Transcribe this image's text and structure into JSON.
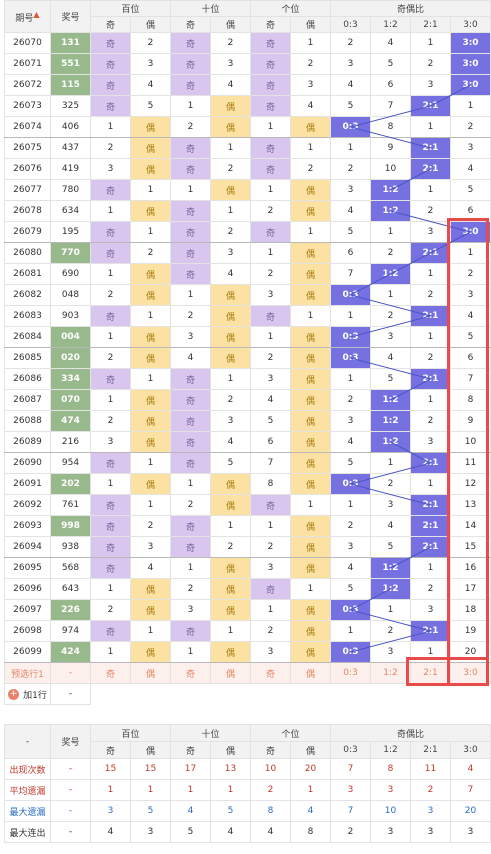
{
  "header": {
    "period": "期号",
    "prize": "奖号",
    "groups": [
      "百位",
      "十位",
      "个位",
      "奇偶比"
    ],
    "odd": "奇",
    "even": "偶",
    "ratios": [
      "0:3",
      "1:2",
      "2:1",
      "3:0"
    ]
  },
  "rows": [
    {
      "p": "26070",
      "n": "131",
      "hl": true,
      "b": [
        "奇",
        "2"
      ],
      "t": [
        "奇",
        "2"
      ],
      "g": [
        "奇",
        "1"
      ],
      "r": [
        "2",
        "4",
        "1",
        "3:0"
      ],
      "sel": 3
    },
    {
      "p": "26071",
      "n": "551",
      "hl": true,
      "b": [
        "奇",
        "3"
      ],
      "t": [
        "奇",
        "3"
      ],
      "g": [
        "奇",
        "2"
      ],
      "r": [
        "3",
        "5",
        "2",
        "3:0"
      ],
      "sel": 3
    },
    {
      "p": "26072",
      "n": "115",
      "hl": true,
      "b": [
        "奇",
        "4"
      ],
      "t": [
        "奇",
        "4"
      ],
      "g": [
        "奇",
        "3"
      ],
      "r": [
        "4",
        "6",
        "3",
        "3:0"
      ],
      "sel": 3
    },
    {
      "p": "26073",
      "n": "325",
      "hl": false,
      "b": [
        "奇",
        "5"
      ],
      "t": [
        "1",
        "偶"
      ],
      "g": [
        "奇",
        "4"
      ],
      "r": [
        "5",
        "7",
        "2:1",
        "1"
      ],
      "sel": 2
    },
    {
      "p": "26074",
      "n": "406",
      "hl": false,
      "b": [
        "1",
        "偶"
      ],
      "t": [
        "2",
        "偶"
      ],
      "g": [
        "1",
        "偶"
      ],
      "r": [
        "0:3",
        "8",
        "1",
        "2"
      ],
      "sel": 0
    },
    {
      "p": "26075",
      "n": "437",
      "hl": false,
      "b": [
        "2",
        "偶"
      ],
      "t": [
        "奇",
        "1"
      ],
      "g": [
        "奇",
        "1"
      ],
      "r": [
        "1",
        "9",
        "2:1",
        "3"
      ],
      "sel": 2
    },
    {
      "p": "26076",
      "n": "419",
      "hl": false,
      "b": [
        "3",
        "偶"
      ],
      "t": [
        "奇",
        "2"
      ],
      "g": [
        "奇",
        "2"
      ],
      "r": [
        "2",
        "10",
        "2:1",
        "4"
      ],
      "sel": 2
    },
    {
      "p": "26077",
      "n": "780",
      "hl": false,
      "b": [
        "奇",
        "1"
      ],
      "t": [
        "1",
        "偶"
      ],
      "g": [
        "1",
        "偶"
      ],
      "r": [
        "3",
        "1:2",
        "1",
        "5"
      ],
      "sel": 1
    },
    {
      "p": "26078",
      "n": "634",
      "hl": false,
      "b": [
        "1",
        "偶"
      ],
      "t": [
        "奇",
        "1"
      ],
      "g": [
        "2",
        "偶"
      ],
      "r": [
        "4",
        "1:2",
        "2",
        "6"
      ],
      "sel": 1
    },
    {
      "p": "26079",
      "n": "195",
      "hl": false,
      "b": [
        "奇",
        "1"
      ],
      "t": [
        "奇",
        "2"
      ],
      "g": [
        "奇",
        "1"
      ],
      "r": [
        "5",
        "1",
        "3",
        "3:0"
      ],
      "sel": 3
    },
    {
      "p": "26080",
      "n": "770",
      "hl": true,
      "b": [
        "奇",
        "2"
      ],
      "t": [
        "奇",
        "3"
      ],
      "g": [
        "1",
        "偶"
      ],
      "r": [
        "6",
        "2",
        "2:1",
        "1"
      ],
      "sel": 2
    },
    {
      "p": "26081",
      "n": "690",
      "hl": false,
      "b": [
        "1",
        "偶"
      ],
      "t": [
        "奇",
        "4"
      ],
      "g": [
        "2",
        "偶"
      ],
      "r": [
        "7",
        "1:2",
        "1",
        "2"
      ],
      "sel": 1
    },
    {
      "p": "26082",
      "n": "048",
      "hl": false,
      "b": [
        "2",
        "偶"
      ],
      "t": [
        "1",
        "偶"
      ],
      "g": [
        "3",
        "偶"
      ],
      "r": [
        "0:3",
        "1",
        "2",
        "3"
      ],
      "sel": 0
    },
    {
      "p": "26083",
      "n": "903",
      "hl": false,
      "b": [
        "奇",
        "1"
      ],
      "t": [
        "2",
        "偶"
      ],
      "g": [
        "奇",
        "1"
      ],
      "r": [
        "1",
        "2",
        "2:1",
        "4"
      ],
      "sel": 2
    },
    {
      "p": "26084",
      "n": "004",
      "hl": true,
      "b": [
        "1",
        "偶"
      ],
      "t": [
        "3",
        "偶"
      ],
      "g": [
        "1",
        "偶"
      ],
      "r": [
        "0:3",
        "3",
        "1",
        "5"
      ],
      "sel": 0
    },
    {
      "p": "26085",
      "n": "020",
      "hl": true,
      "b": [
        "2",
        "偶"
      ],
      "t": [
        "4",
        "偶"
      ],
      "g": [
        "2",
        "偶"
      ],
      "r": [
        "0:3",
        "4",
        "2",
        "6"
      ],
      "sel": 0
    },
    {
      "p": "26086",
      "n": "334",
      "hl": true,
      "b": [
        "奇",
        "1"
      ],
      "t": [
        "奇",
        "1"
      ],
      "g": [
        "3",
        "偶"
      ],
      "r": [
        "1",
        "5",
        "2:1",
        "7"
      ],
      "sel": 2
    },
    {
      "p": "26087",
      "n": "070",
      "hl": true,
      "b": [
        "1",
        "偶"
      ],
      "t": [
        "奇",
        "2"
      ],
      "g": [
        "4",
        "偶"
      ],
      "r": [
        "2",
        "1:2",
        "1",
        "8"
      ],
      "sel": 1
    },
    {
      "p": "26088",
      "n": "474",
      "hl": true,
      "b": [
        "2",
        "偶"
      ],
      "t": [
        "奇",
        "3"
      ],
      "g": [
        "5",
        "偶"
      ],
      "r": [
        "3",
        "1:2",
        "2",
        "9"
      ],
      "sel": 1
    },
    {
      "p": "26089",
      "n": "216",
      "hl": false,
      "b": [
        "3",
        "偶"
      ],
      "t": [
        "奇",
        "4"
      ],
      "g": [
        "6",
        "偶"
      ],
      "r": [
        "4",
        "1:2",
        "3",
        "10"
      ],
      "sel": 1
    },
    {
      "p": "26090",
      "n": "954",
      "hl": false,
      "b": [
        "奇",
        "1"
      ],
      "t": [
        "奇",
        "5"
      ],
      "g": [
        "7",
        "偶"
      ],
      "r": [
        "5",
        "1",
        "2:1",
        "11"
      ],
      "sel": 2
    },
    {
      "p": "26091",
      "n": "202",
      "hl": true,
      "b": [
        "1",
        "偶"
      ],
      "t": [
        "1",
        "偶"
      ],
      "g": [
        "8",
        "偶"
      ],
      "r": [
        "0:3",
        "2",
        "1",
        "12"
      ],
      "sel": 0
    },
    {
      "p": "26092",
      "n": "761",
      "hl": false,
      "b": [
        "奇",
        "1"
      ],
      "t": [
        "2",
        "偶"
      ],
      "g": [
        "奇",
        "1"
      ],
      "r": [
        "1",
        "3",
        "2:1",
        "13"
      ],
      "sel": 2
    },
    {
      "p": "26093",
      "n": "998",
      "hl": true,
      "b": [
        "奇",
        "2"
      ],
      "t": [
        "奇",
        "1"
      ],
      "g": [
        "1",
        "偶"
      ],
      "r": [
        "2",
        "4",
        "2:1",
        "14"
      ],
      "sel": 2
    },
    {
      "p": "26094",
      "n": "938",
      "hl": false,
      "b": [
        "奇",
        "3"
      ],
      "t": [
        "奇",
        "2"
      ],
      "g": [
        "2",
        "偶"
      ],
      "r": [
        "3",
        "5",
        "2:1",
        "15"
      ],
      "sel": 2
    },
    {
      "p": "26095",
      "n": "568",
      "hl": false,
      "b": [
        "奇",
        "4"
      ],
      "t": [
        "1",
        "偶"
      ],
      "g": [
        "3",
        "偶"
      ],
      "r": [
        "4",
        "1:2",
        "1",
        "16"
      ],
      "sel": 1
    },
    {
      "p": "26096",
      "n": "643",
      "hl": false,
      "b": [
        "1",
        "偶"
      ],
      "t": [
        "2",
        "偶"
      ],
      "g": [
        "奇",
        "1"
      ],
      "r": [
        "5",
        "1:2",
        "2",
        "17"
      ],
      "sel": 1
    },
    {
      "p": "26097",
      "n": "226",
      "hl": true,
      "b": [
        "2",
        "偶"
      ],
      "t": [
        "3",
        "偶"
      ],
      "g": [
        "1",
        "偶"
      ],
      "r": [
        "0:3",
        "1",
        "3",
        "18"
      ],
      "sel": 0
    },
    {
      "p": "26098",
      "n": "974",
      "hl": false,
      "b": [
        "奇",
        "1"
      ],
      "t": [
        "奇",
        "1"
      ],
      "g": [
        "2",
        "偶"
      ],
      "r": [
        "1",
        "2",
        "2:1",
        "19"
      ],
      "sel": 2
    },
    {
      "p": "26099",
      "n": "424",
      "hl": true,
      "b": [
        "1",
        "偶"
      ],
      "t": [
        "1",
        "偶"
      ],
      "g": [
        "3",
        "偶"
      ],
      "r": [
        "0:3",
        "3",
        "1",
        "20"
      ],
      "sel": 0
    }
  ],
  "predict": {
    "label": "预选行1",
    "dash": "-",
    "cells": [
      "奇",
      "偶",
      "奇",
      "偶",
      "奇",
      "偶",
      "0:3",
      "1:2",
      "2:1",
      "3:0"
    ]
  },
  "add_row": {
    "label": "加1行",
    "icon": "plus-icon",
    "dash": "-"
  },
  "footer": {
    "dash": "-",
    "prize": "奖号",
    "stats": [
      {
        "label": "出现次数",
        "values": [
          "15",
          "15",
          "17",
          "13",
          "10",
          "20",
          "7",
          "8",
          "11",
          "4"
        ]
      },
      {
        "label": "平均遗漏",
        "values": [
          "1",
          "1",
          "1",
          "1",
          "2",
          "1",
          "3",
          "3",
          "2",
          "7"
        ]
      },
      {
        "label": "最大遗漏",
        "values": [
          "3",
          "5",
          "4",
          "5",
          "8",
          "4",
          "7",
          "10",
          "3",
          "20"
        ]
      },
      {
        "label": "最大连出",
        "values": [
          "4",
          "3",
          "5",
          "4",
          "4",
          "8",
          "2",
          "3",
          "3",
          "3"
        ]
      }
    ]
  },
  "colors": {
    "odd": "#d8c6ef",
    "even": "#fbe1a2",
    "selected": "#7670e0",
    "highlight_num": "#98b98c",
    "box": "#e94a4a"
  }
}
